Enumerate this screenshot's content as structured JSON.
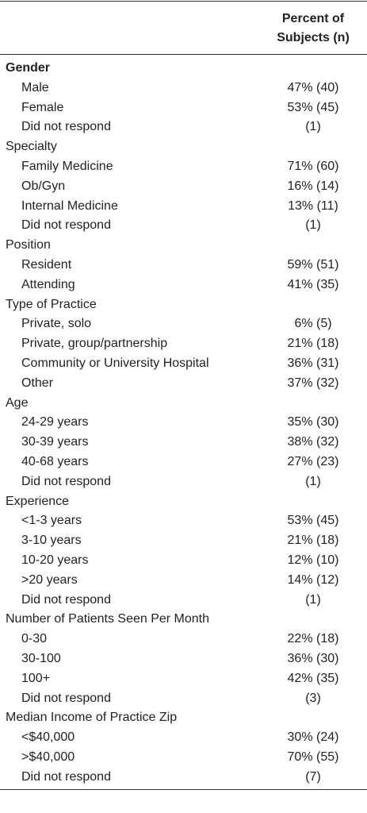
{
  "table": {
    "header": [
      "Percent of",
      "Subjects (n)"
    ],
    "sections": [
      {
        "title": "Gender",
        "rows": [
          {
            "label": "Male",
            "value": "47% (40)"
          },
          {
            "label": "Female",
            "value": "53% (45)"
          },
          {
            "label": "Did not respond",
            "value": "(1)"
          }
        ]
      },
      {
        "title": "Specialty",
        "rows": [
          {
            "label": "Family Medicine",
            "value": "71% (60)"
          },
          {
            "label": "Ob/Gyn",
            "value": "16% (14)"
          },
          {
            "label": "Internal Medicine",
            "value": "13% (11)"
          },
          {
            "label": "Did not respond",
            "value": "(1)"
          }
        ]
      },
      {
        "title": "Position",
        "rows": [
          {
            "label": "Resident",
            "value": "59% (51)"
          },
          {
            "label": "Attending",
            "value": "41% (35)"
          }
        ]
      },
      {
        "title": "Type of Practice",
        "rows": [
          {
            "label": "Private, solo",
            "value": "6% (5)"
          },
          {
            "label": "Private, group/partnership",
            "value": "21% (18)"
          },
          {
            "label": "Community or University Hospital",
            "value": "36% (31)"
          },
          {
            "label": "Other",
            "value": "37% (32)"
          }
        ]
      },
      {
        "title": "Age",
        "rows": [
          {
            "label": "24-29 years",
            "value": "35% (30)"
          },
          {
            "label": "30-39 years",
            "value": "38% (32)"
          },
          {
            "label": "40-68 years",
            "value": "27% (23)"
          },
          {
            "label": "Did not respond",
            "value": "(1)"
          }
        ]
      },
      {
        "title": "Experience",
        "rows": [
          {
            "label": "<1-3 years",
            "value": "53% (45)"
          },
          {
            "label": "3-10 years",
            "value": "21% (18)"
          },
          {
            "label": "10-20 years",
            "value": "12% (10)"
          },
          {
            "label": ">20 years",
            "value": "14% (12)"
          },
          {
            "label": "Did not respond",
            "value": "(1)"
          }
        ]
      },
      {
        "title": "Number of Patients Seen Per Month",
        "rows": [
          {
            "label": "0-30",
            "value": "22% (18)"
          },
          {
            "label": "30-100",
            "value": "36% (30)"
          },
          {
            "label": "100+",
            "value": "42% (35)"
          },
          {
            "label": "Did not respond",
            "value": "(3)"
          }
        ]
      },
      {
        "title": "Median Income of Practice Zip",
        "rows": [
          {
            "label": "<$40,000",
            "value": "30% (24)"
          },
          {
            "label": ">$40,000",
            "value": "70% (55)"
          },
          {
            "label": "Did not respond",
            "value": "(7)"
          }
        ]
      }
    ]
  }
}
